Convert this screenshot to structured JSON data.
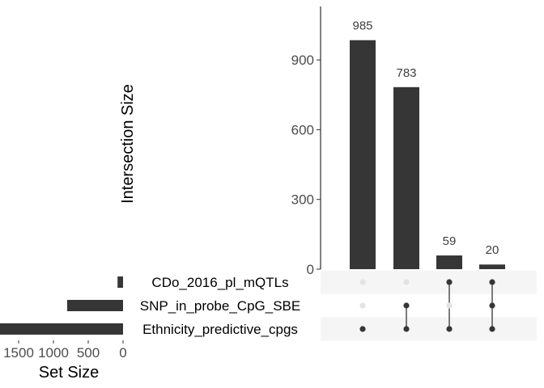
{
  "chart_data": {
    "type": "bar",
    "intersection": {
      "ylabel": "Intersection Size",
      "ylim": [
        0,
        1130
      ],
      "yticks": [
        0,
        300,
        600,
        900
      ],
      "bars": [
        {
          "value": 985,
          "label": "985",
          "sets": [
            false,
            false,
            true
          ]
        },
        {
          "value": 783,
          "label": "783",
          "sets": [
            false,
            true,
            true
          ]
        },
        {
          "value": 59,
          "label": "59",
          "sets": [
            true,
            false,
            true
          ]
        },
        {
          "value": 20,
          "label": "20",
          "sets": [
            true,
            true,
            true
          ]
        }
      ]
    },
    "sets": [
      {
        "name": "CDo_2016_pl_mQTLs",
        "size": 79
      },
      {
        "name": "SNP_in_probe_CpG_SBE",
        "size": 803
      },
      {
        "name": "Ethnicity_predictive_cpgs",
        "size": 1832
      }
    ],
    "set_size": {
      "xlabel": "Set Size",
      "xticks": [
        1500,
        1000,
        500,
        0
      ],
      "xtick_labels": [
        "1500",
        "1000",
        "500",
        "0"
      ]
    },
    "colors": {
      "bar": "#363636",
      "dot_active": "#363636",
      "dot_inactive": "#e3e3e3",
      "stripe": "#f5f5f5",
      "axis_text": "#4d4d4d"
    }
  }
}
